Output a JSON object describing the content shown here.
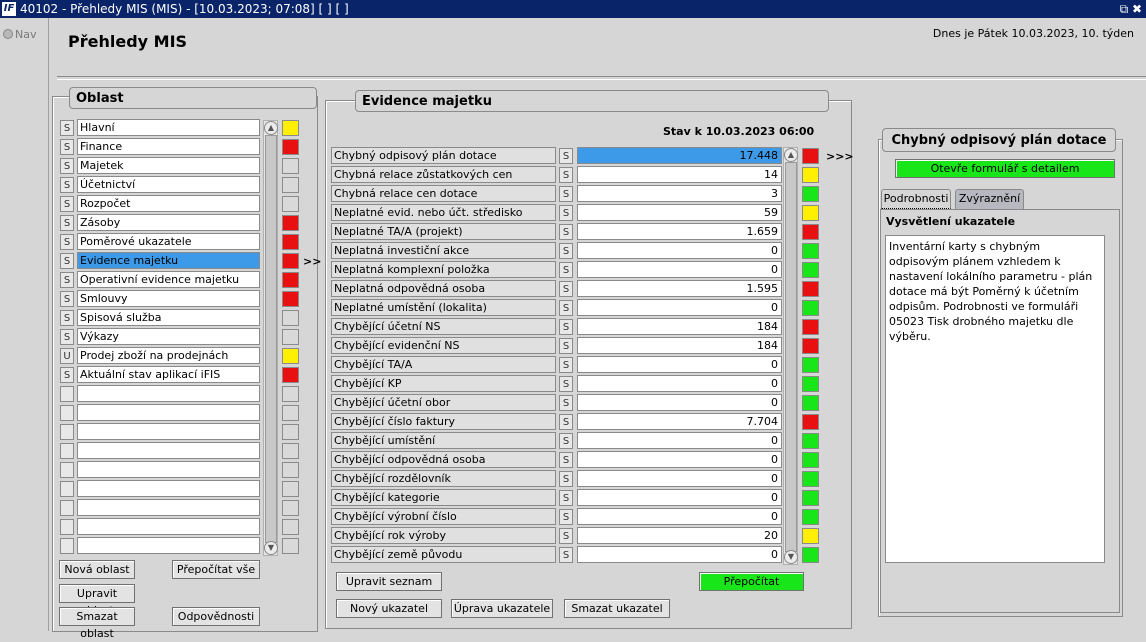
{
  "window": {
    "title": "40102 - Přehledy MIS (MIS) - [10.03.2023; 07:08]  [ ]  [ ]",
    "logo": "IF",
    "controls": "⧉ ✖"
  },
  "nav": {
    "label": "Nav"
  },
  "header": {
    "title": "Přehledy MIS",
    "date_text": "Dnes je Pátek   10.03.2023, 10. týden"
  },
  "oblast": {
    "title": "Oblast",
    "rows": [
      {
        "s": "S",
        "label": "Hlavní",
        "status": "yellow"
      },
      {
        "s": "S",
        "label": "Finance",
        "status": "red"
      },
      {
        "s": "S",
        "label": "Majetek",
        "status": "gray"
      },
      {
        "s": "S",
        "label": "Účetnictví",
        "status": "gray"
      },
      {
        "s": "S",
        "label": "Rozpočet",
        "status": "gray"
      },
      {
        "s": "S",
        "label": "Zásoby",
        "status": "red"
      },
      {
        "s": "S",
        "label": "Poměrové ukazatele",
        "status": "red"
      },
      {
        "s": "S",
        "label": "Evidence majetku",
        "status": "red",
        "selected": true
      },
      {
        "s": "S",
        "label": "Operativní evidence majetku",
        "status": "red"
      },
      {
        "s": "S",
        "label": "Smlouvy",
        "status": "red"
      },
      {
        "s": "S",
        "label": "Spisová služba",
        "status": "gray"
      },
      {
        "s": "S",
        "label": "Výkazy",
        "status": "gray"
      },
      {
        "s": "U",
        "label": "Prodej zboží na prodejnách",
        "status": "yellow"
      },
      {
        "s": "S",
        "label": "Aktuální stav aplikací iFIS",
        "status": "red"
      },
      {
        "s": "",
        "label": "",
        "status": "gray"
      },
      {
        "s": "",
        "label": "",
        "status": "gray"
      },
      {
        "s": "",
        "label": "",
        "status": "gray"
      },
      {
        "s": "",
        "label": "",
        "status": "gray"
      },
      {
        "s": "",
        "label": "",
        "status": "gray"
      },
      {
        "s": "",
        "label": "",
        "status": "gray"
      },
      {
        "s": "",
        "label": "",
        "status": "gray"
      },
      {
        "s": "",
        "label": "",
        "status": "gray"
      },
      {
        "s": "",
        "label": "",
        "status": "gray"
      }
    ],
    "buttons": {
      "new": "Nová oblast",
      "recalc_all": "Přepočítat vše",
      "edit": "Upravit oblast",
      "delete": "Smazat oblast",
      "responsibilities": "Odpovědnosti"
    },
    "pointer": ">>"
  },
  "evidence": {
    "title": "Evidence majetku",
    "state": "Stav k 10.03.2023 06:00",
    "rows": [
      {
        "label": "Chybný odpisový plán dotace",
        "value": "17.448",
        "status": "red",
        "selected": true
      },
      {
        "label": "Chybná relace zůstatkových cen",
        "value": "14",
        "status": "yellow"
      },
      {
        "label": "Chybná relace cen dotace",
        "value": "3",
        "status": "green"
      },
      {
        "label": "Neplatné evid. nebo účt. středisko",
        "value": "59",
        "status": "yellow"
      },
      {
        "label": "Neplatné TA/A (projekt)",
        "value": "1.659",
        "status": "red"
      },
      {
        "label": "Neplatná investiční akce",
        "value": "0",
        "status": "green"
      },
      {
        "label": "Neplatná komplexní položka",
        "value": "0",
        "status": "green"
      },
      {
        "label": "Neplatná odpovědná osoba",
        "value": "1.595",
        "status": "red"
      },
      {
        "label": "Neplatné umístění (lokalita)",
        "value": "0",
        "status": "green"
      },
      {
        "label": "Chybějící účetní NS",
        "value": "184",
        "status": "red"
      },
      {
        "label": "Chybějící evidenční NS",
        "value": "184",
        "status": "red"
      },
      {
        "label": "Chybějící TA/A",
        "value": "0",
        "status": "green"
      },
      {
        "label": "Chybějící KP",
        "value": "0",
        "status": "green"
      },
      {
        "label": "Chybějící účetní obor",
        "value": "0",
        "status": "green"
      },
      {
        "label": "Chybějící číslo faktury",
        "value": "7.704",
        "status": "red"
      },
      {
        "label": "Chybějící umístění",
        "value": "0",
        "status": "green"
      },
      {
        "label": "Chybějící odpovědná osoba",
        "value": "0",
        "status": "green"
      },
      {
        "label": "Chybějící rozdělovník",
        "value": "0",
        "status": "green"
      },
      {
        "label": "Chybějící kategorie",
        "value": "0",
        "status": "green"
      },
      {
        "label": "Chybějící výrobní číslo",
        "value": "0",
        "status": "green"
      },
      {
        "label": "Chybějící rok výroby",
        "value": "20",
        "status": "yellow"
      },
      {
        "label": "Chybějící země původu",
        "value": "0",
        "status": "green"
      }
    ],
    "s_label": "S",
    "buttons": {
      "edit_list": "Upravit seznam",
      "recalc": "Přepočítat",
      "new": "Nový ukazatel",
      "edit": "Úprava ukazatele",
      "delete": "Smazat ukazatel"
    },
    "pointer": ">>>"
  },
  "detail": {
    "title": "Chybný odpisový plán dotace",
    "open_button": "Otevře formulář s detailem",
    "tabs": [
      "Podrobnosti",
      "Zvýraznění"
    ],
    "section_title": "Vysvětlení ukazatele",
    "text": "Inventární karty s chybným odpisovým plánem vzhledem k nastavení lokálního parametru - plán dotace má být Poměrný k účetním odpisům. Podrobnosti ve formuláři 05023 Tisk drobného majetku dle výběru."
  },
  "colors": {
    "red": "#e81010",
    "yellow": "#ffef00",
    "green": "#19e619",
    "gray": "#d9d9d9",
    "selected": "#3d9ae8",
    "titlebar": "#0a246a"
  }
}
